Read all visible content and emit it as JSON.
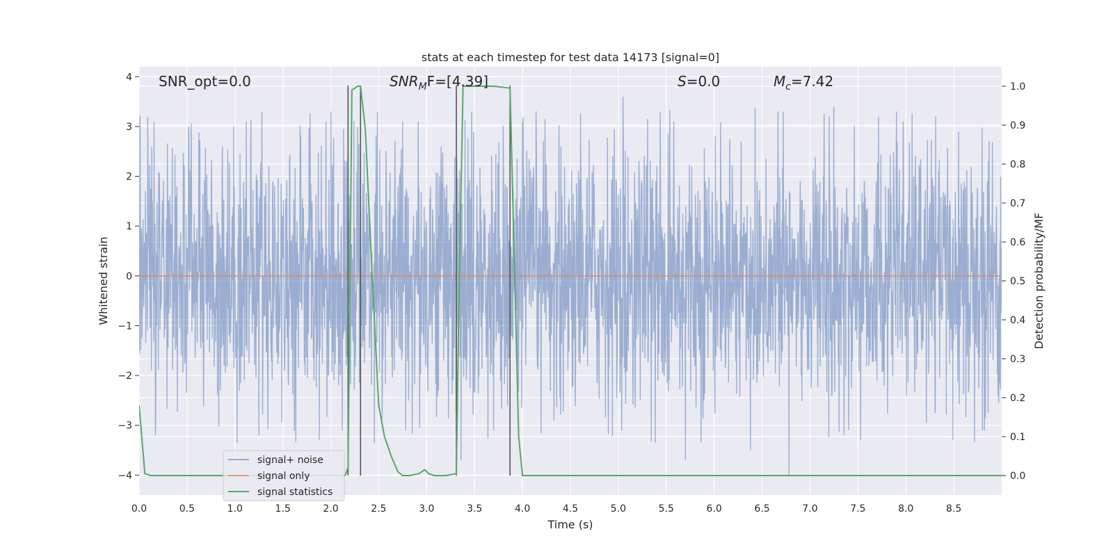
{
  "chart_data": {
    "type": "line",
    "title": "stats at each timestep for test data 14173 [signal=0]",
    "xlabel": "Time (s)",
    "ylabel": "Whitened strain",
    "y2label": "Detection probability/MF",
    "xlim": [
      0.0,
      9.0
    ],
    "ylim": [
      -4.4,
      4.2
    ],
    "y2lim": [
      -0.05,
      1.05
    ],
    "x_ticks": [
      "0.0",
      "0.5",
      "1.0",
      "1.5",
      "2.0",
      "2.5",
      "3.0",
      "3.5",
      "4.0",
      "4.5",
      "5.0",
      "5.5",
      "6.0",
      "6.5",
      "7.0",
      "7.5",
      "8.0",
      "8.5"
    ],
    "y_ticks": [
      "4",
      "3",
      "2",
      "1",
      "0",
      "−1",
      "−2",
      "−3",
      "−4"
    ],
    "y2_ticks": [
      "1.0",
      "0.9",
      "0.8",
      "0.7",
      "0.6",
      "0.5",
      "0.4",
      "0.3",
      "0.2",
      "0.1",
      "0.0"
    ],
    "grid": true,
    "legend_position": "lower-left",
    "annotations": {
      "snr_opt": "SNR_opt=0.0",
      "snr_mf_base": "SNR",
      "snr_mf_sub": "M",
      "snr_mf_rest": "F=[4.39]",
      "s_label": "S",
      "s_value": "=0.0",
      "mc_base": "M",
      "mc_sub": "c",
      "mc_value": "=7.42"
    },
    "vlines_x": [
      2.18,
      2.31,
      3.31,
      3.87
    ],
    "series": [
      {
        "name": "signal+ noise",
        "axis": "left",
        "color": "#4c72b0",
        "description_envelope": {
          "typical_abs": 1.6,
          "peak_abs": 3.4
        },
        "peaks": [
          [
            0.13,
            2.6
          ],
          [
            0.52,
            2.8
          ],
          [
            0.87,
            2.6
          ],
          [
            1.12,
            3.1
          ],
          [
            1.28,
            3.3
          ],
          [
            1.62,
            2.7
          ],
          [
            1.95,
            3.1
          ],
          [
            2.0,
            3.3
          ],
          [
            2.28,
            3.0
          ],
          [
            2.75,
            3.1
          ],
          [
            3.15,
            2.6
          ],
          [
            3.47,
            3.3
          ],
          [
            4.0,
            3.1
          ],
          [
            4.4,
            2.6
          ],
          [
            5.05,
            3.6
          ],
          [
            5.58,
            3.1
          ],
          [
            6.28,
            2.7
          ],
          [
            6.72,
            3.3
          ],
          [
            7.2,
            3.2
          ],
          [
            7.97,
            3.1
          ],
          [
            8.55,
            2.9
          ],
          [
            8.87,
            2.7
          ],
          [
            0.17,
            -3.2
          ],
          [
            1.25,
            -3.2
          ],
          [
            1.62,
            -3.1
          ],
          [
            2.12,
            -3.1
          ],
          [
            2.78,
            -3.1
          ],
          [
            3.36,
            -3.7
          ],
          [
            3.7,
            -3.1
          ],
          [
            5.7,
            -3.7
          ],
          [
            6.38,
            -3.5
          ],
          [
            6.78,
            -4.0
          ],
          [
            7.53,
            -3.3
          ],
          [
            8.8,
            -3.1
          ]
        ]
      },
      {
        "name": "signal only",
        "axis": "left",
        "color": "#dd8452",
        "x": [
          0.0,
          9.0
        ],
        "y": [
          0.0,
          0.0
        ]
      },
      {
        "name": "signal statistics",
        "axis": "right",
        "color": "#55a868",
        "x": [
          0.0,
          0.06,
          0.12,
          0.5,
          1.0,
          1.5,
          2.0,
          2.15,
          2.18,
          2.22,
          2.28,
          2.31,
          2.36,
          2.43,
          2.5,
          2.56,
          2.63,
          2.7,
          2.75,
          2.82,
          2.92,
          2.98,
          3.02,
          3.08,
          3.2,
          3.31,
          3.34,
          3.38,
          3.5,
          3.7,
          3.87,
          3.92,
          3.96,
          4.0,
          4.5,
          5.0,
          6.0,
          7.0,
          8.0,
          9.0
        ],
        "y": [
          0.18,
          0.005,
          0.0,
          0.0,
          0.0,
          0.0,
          0.0,
          0.0,
          0.02,
          0.99,
          1.0,
          1.0,
          0.89,
          0.52,
          0.18,
          0.1,
          0.05,
          0.01,
          0.0,
          0.0,
          0.005,
          0.015,
          0.005,
          0.0,
          0.0,
          0.005,
          0.5,
          1.0,
          1.0,
          1.0,
          0.995,
          0.5,
          0.1,
          0.0,
          0.0,
          0.0,
          0.0,
          0.0,
          0.0,
          0.0
        ]
      }
    ]
  }
}
